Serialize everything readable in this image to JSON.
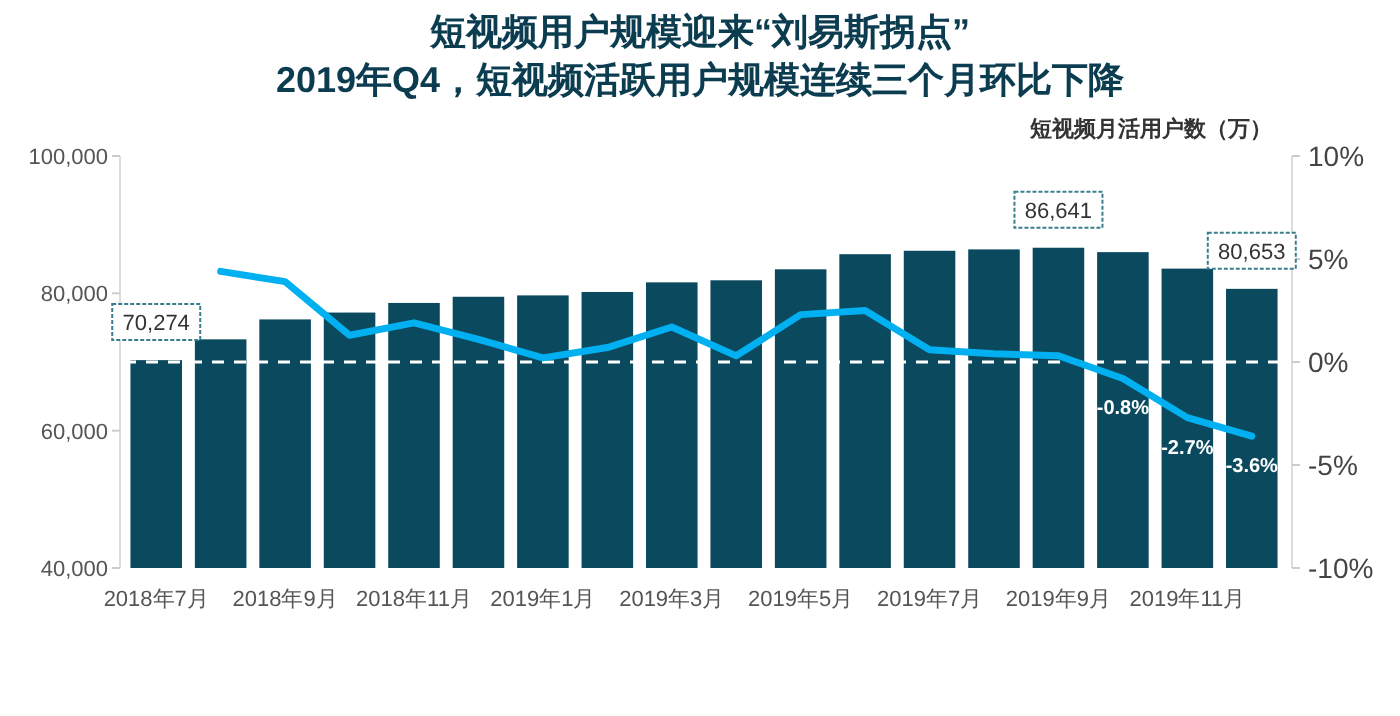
{
  "chart_data": {
    "type": "bar",
    "title": "短视频用户规模迎来“刘易斯拐点”\n2019年Q4，短视频活跃用户规模连续三个月环比下降",
    "y2label": "短视频月活用户数（万）",
    "categories": [
      "2018年7月",
      null,
      "2018年9月",
      null,
      "2018年11月",
      null,
      "2019年1月",
      null,
      "2019年3月",
      null,
      "2019年5月",
      null,
      "2019年7月",
      null,
      "2019年9月",
      null,
      "2019年11月",
      null
    ],
    "series": [
      {
        "color": "#0b4a5e",
        "values": [
          70274,
          73300,
          76200,
          77200,
          78600,
          79500,
          79700,
          80200,
          81600,
          81900,
          83500,
          85700,
          86200,
          86400,
          86641,
          86000,
          83600,
          80653
        ],
        "value_labels": [
          "70,274",
          null,
          null,
          null,
          null,
          null,
          null,
          null,
          null,
          null,
          null,
          null,
          null,
          null,
          "86,641",
          null,
          null,
          "80,653"
        ]
      },
      {
        "type": "line",
        "axis": "y2",
        "color": "#00b0f0",
        "values": [
          null,
          4.4,
          3.9,
          1.3,
          1.9,
          1.1,
          0.2,
          0.7,
          1.7,
          0.3,
          2.3,
          2.5,
          0.6,
          0.4,
          0.3,
          -0.8,
          -2.7,
          -3.6
        ],
        "value_labels": [
          null,
          null,
          null,
          null,
          null,
          null,
          null,
          null,
          null,
          null,
          null,
          null,
          null,
          null,
          null,
          "-0.8%",
          "-2.7%",
          "-3.6%"
        ]
      }
    ],
    "ylim": [
      40000,
      100000
    ],
    "yticks": [
      {
        "value": 40000,
        "label": "40,000"
      },
      {
        "value": 60000,
        "label": "60,000"
      },
      {
        "value": 80000,
        "label": "80,000"
      },
      {
        "value": 100000,
        "label": "100,000"
      }
    ],
    "y2lim": [
      -10,
      10
    ],
    "y2ticks": [
      {
        "value": -10,
        "label": "-10%"
      },
      {
        "value": -5,
        "label": "-5%"
      },
      {
        "value": 0,
        "label": "0%"
      },
      {
        "value": 5,
        "label": "5%"
      },
      {
        "value": 10,
        "label": "10%"
      }
    ],
    "ref_lines": [
      {
        "axis": "y2",
        "value": 0,
        "color": "#ffffff",
        "line_style": "dashed"
      }
    ],
    "grid": false
  }
}
